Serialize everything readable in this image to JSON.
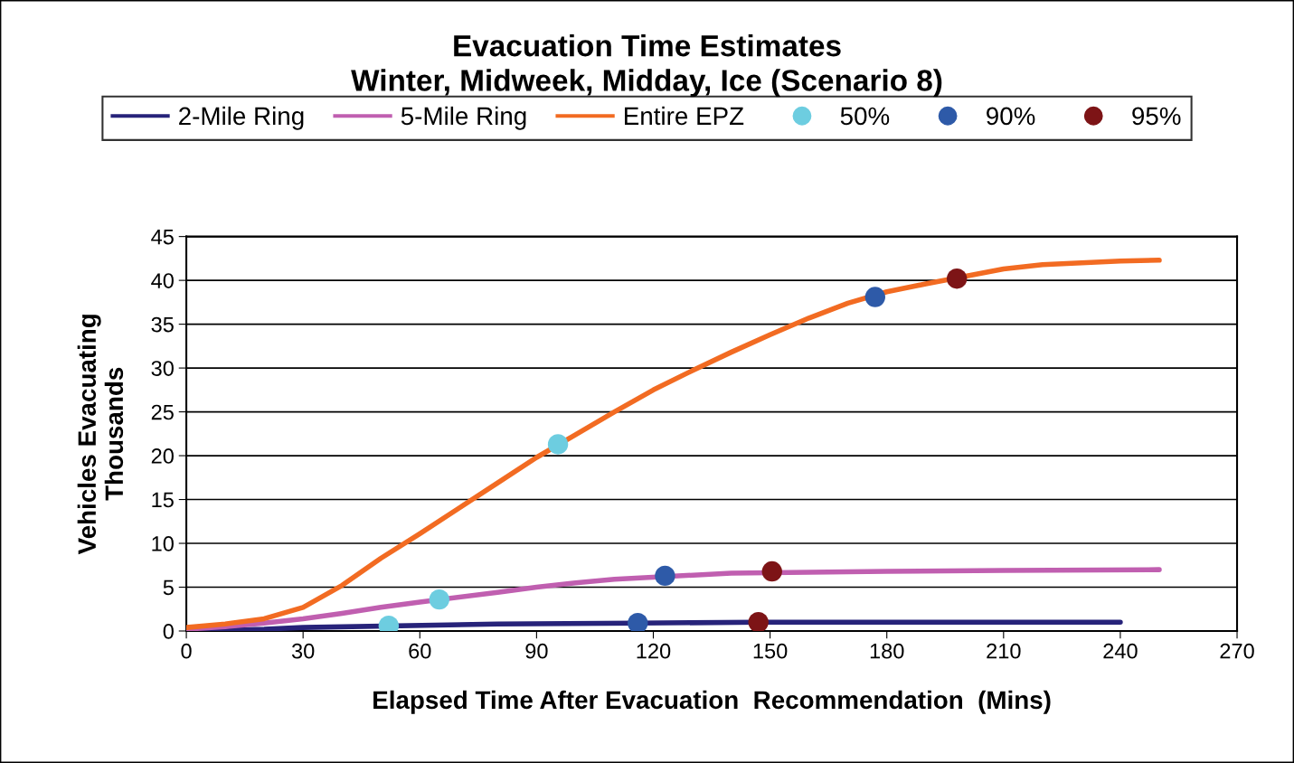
{
  "chart_data": {
    "type": "line",
    "title": "Evacuation Time Estimates\nWinter, Midweek, Midday, Ice (Scenario 8)",
    "xlabel": "Elapsed Time After Evacuation  Recommendation  (Mins)",
    "ylabel": "Vehicles Evacuating\nThousands",
    "xlim": [
      0,
      270
    ],
    "xticks": [
      0,
      30,
      60,
      90,
      120,
      150,
      180,
      210,
      240,
      270
    ],
    "ylim": [
      0,
      45
    ],
    "yticks": [
      0,
      5,
      10,
      15,
      20,
      25,
      30,
      35,
      40,
      45
    ],
    "grid": "y",
    "legend": "top",
    "marker": "none",
    "line_style": "solid",
    "series": [
      {
        "name": "2-Mile Ring",
        "color": "#27237a",
        "x": [
          0,
          20,
          30,
          80,
          116,
          147,
          180,
          240
        ],
        "values": [
          0.0,
          0.2,
          0.4,
          0.8,
          0.9,
          1.0,
          1.0,
          1.0
        ]
      },
      {
        "name": "5-Mile Ring",
        "color": "#c05fb0",
        "x": [
          0,
          10,
          20,
          30,
          40,
          50,
          60,
          80,
          90,
          100,
          110,
          140,
          180,
          210,
          250
        ],
        "values": [
          0.2,
          0.5,
          0.9,
          1.4,
          2.0,
          2.7,
          3.3,
          4.4,
          5.0,
          5.5,
          5.9,
          6.6,
          6.8,
          6.9,
          7.0
        ]
      },
      {
        "name": "Entire EPZ",
        "color": "#f26b22",
        "x": [
          0,
          10,
          20,
          30,
          40,
          50,
          60,
          70,
          80,
          90,
          100,
          110,
          120,
          130,
          140,
          150,
          160,
          170,
          180,
          190,
          210,
          220,
          230,
          240,
          250
        ],
        "values": [
          0.4,
          0.8,
          1.4,
          2.7,
          5.2,
          8.3,
          11.1,
          14.0,
          16.9,
          19.8,
          22.4,
          25.0,
          27.5,
          29.7,
          31.8,
          33.8,
          35.7,
          37.4,
          38.7,
          39.6,
          41.3,
          41.8,
          42.0,
          42.2,
          42.3
        ]
      },
      {
        "name": "50%",
        "type": "scatter",
        "marker": "circle",
        "color": "#6dcde0",
        "x": [
          52,
          65,
          95.5
        ],
        "values": [
          0.6,
          3.6,
          21.3
        ]
      },
      {
        "name": "90%",
        "type": "scatter",
        "marker": "circle",
        "color": "#2e5aa8",
        "x": [
          116,
          123,
          177
        ],
        "values": [
          0.9,
          6.3,
          38.1
        ]
      },
      {
        "name": "95%",
        "type": "scatter",
        "marker": "circle",
        "color": "#7d1416",
        "x": [
          147,
          150.5,
          198
        ],
        "values": [
          1.0,
          6.8,
          40.2
        ]
      }
    ]
  }
}
